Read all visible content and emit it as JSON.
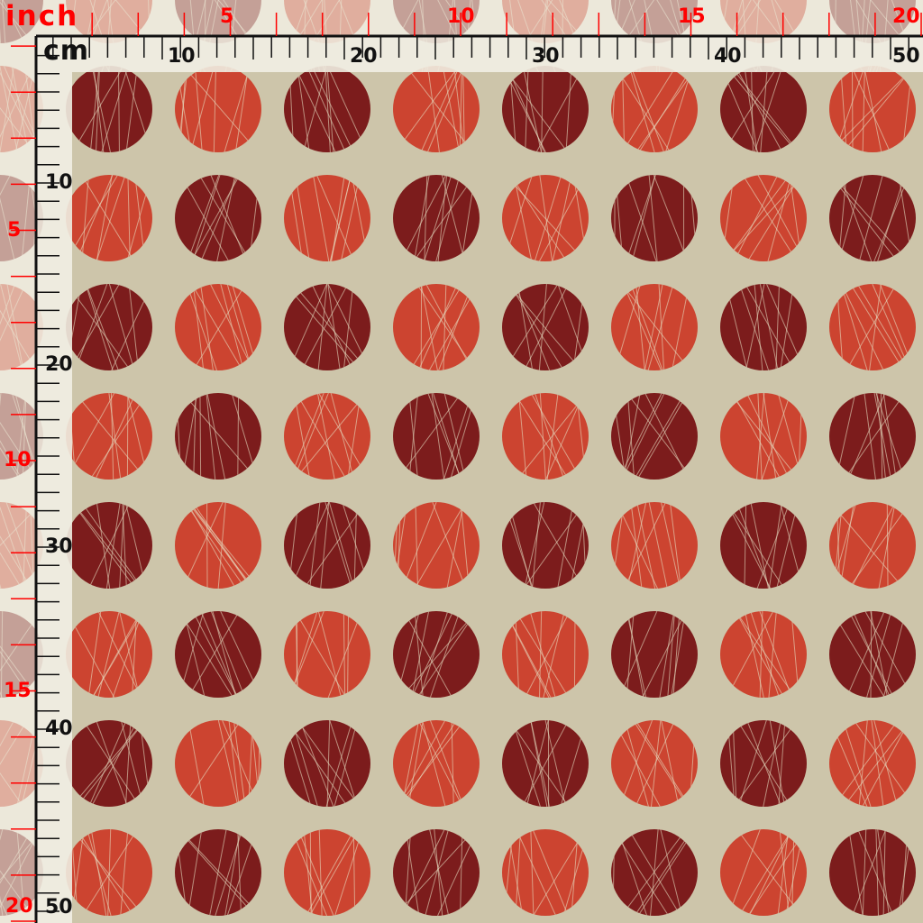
{
  "swatch": {
    "background_color": "#cdc5aa",
    "dot_colors": [
      "#7c1c1c",
      "#cc4430"
    ],
    "thread_color": "#e6dcc0",
    "rows": 8,
    "columns": 8
  },
  "rulers": {
    "cm_unit": "cm",
    "inch_unit": "inch",
    "cm_labels": [
      "10",
      "20",
      "30",
      "40",
      "50"
    ],
    "inch_labels": [
      "5",
      "10",
      "15",
      "20"
    ],
    "cm_color": "#111111",
    "inch_color": "#ff0000"
  }
}
